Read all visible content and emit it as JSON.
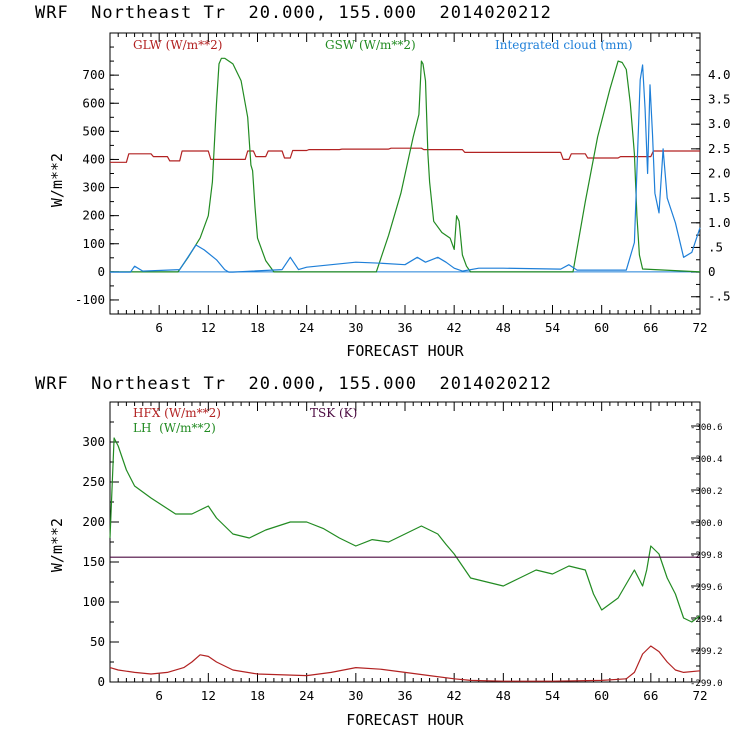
{
  "chart_data": [
    {
      "type": "line",
      "title": "WRF  Northeast Tr  20.000, 155.000  2014020212",
      "xlabel": "FORECAST HOUR",
      "ylabel": "W/m**2",
      "xlim": [
        0,
        72
      ],
      "ylim": [
        -150,
        850
      ],
      "y2lim": [
        -0.85,
        4.85
      ],
      "x_ticks": [
        6,
        12,
        18,
        24,
        30,
        36,
        42,
        48,
        54,
        60,
        66,
        72
      ],
      "y_ticks": [
        -100,
        0,
        100,
        200,
        300,
        400,
        500,
        600,
        700
      ],
      "y2_ticks": [
        -0.5,
        0,
        0.5,
        1.0,
        1.5,
        2.0,
        2.5,
        3.0,
        3.5,
        4.0
      ],
      "y2_tick_labels": [
        "-.5",
        "0",
        ".5",
        "1.0",
        "1.5",
        "2.0",
        "2.5",
        "3.0",
        "3.5",
        "4.0"
      ],
      "legend": [
        "GLW (W/m**2)",
        "GSW (W/m**2)",
        "Integrated cloud (mm)"
      ],
      "series": [
        {
          "name": "GLW (W/m**2)",
          "color": "#b22222",
          "axis": "left",
          "step": true,
          "x": [
            0,
            2,
            2.3,
            5,
            5.3,
            7,
            7.3,
            8.5,
            8.8,
            12,
            12.3,
            16.5,
            16.8,
            17.5,
            17.8,
            19,
            19.3,
            21,
            21.3,
            22,
            22.3,
            24,
            24.3,
            28,
            28.3,
            34,
            34.3,
            38,
            38.3,
            43,
            43.3,
            55,
            55.3,
            56,
            56.3,
            58,
            58.3,
            62,
            62.3,
            66,
            66.3,
            72
          ],
          "y": [
            390,
            390,
            420,
            420,
            410,
            410,
            395,
            395,
            430,
            430,
            400,
            400,
            430,
            430,
            410,
            410,
            430,
            430,
            405,
            405,
            432,
            432,
            435,
            435,
            437,
            437,
            440,
            440,
            435,
            435,
            425,
            425,
            400,
            400,
            420,
            420,
            405,
            405,
            410,
            410,
            430,
            430
          ]
        },
        {
          "name": "GSW (W/m**2)",
          "color": "#228b22",
          "axis": "left",
          "x": [
            0,
            8.3,
            9.5,
            11,
            12,
            12.5,
            13,
            13.3,
            13.6,
            14,
            15,
            16,
            16.8,
            17.2,
            17.4,
            17.7,
            18,
            19,
            20,
            32.5,
            34,
            35.5,
            37,
            37.7,
            38,
            38.2,
            38.5,
            38.8,
            39,
            39.5,
            40.5,
            41.5,
            42,
            42.3,
            42.6,
            43,
            43.5,
            44,
            56.5,
            58,
            59.5,
            61,
            62,
            62.5,
            63,
            63.5,
            64,
            64.3,
            64.6,
            65,
            72
          ],
          "y": [
            0,
            0,
            50,
            120,
            200,
            320,
            600,
            740,
            760,
            760,
            740,
            680,
            550,
            380,
            360,
            230,
            120,
            40,
            0,
            0,
            130,
            280,
            480,
            560,
            750,
            740,
            680,
            420,
            320,
            180,
            140,
            120,
            80,
            200,
            180,
            60,
            20,
            0,
            0,
            250,
            480,
            650,
            750,
            745,
            720,
            600,
            420,
            200,
            60,
            10,
            0
          ]
        },
        {
          "name": "Integrated cloud (mm)",
          "color": "#1e7fd8",
          "axis": "right",
          "x": [
            0,
            2.5,
            3,
            4,
            8.5,
            9.5,
            10.5,
            11.5,
            13,
            14,
            14.5,
            15,
            21,
            22,
            23,
            24,
            30,
            33,
            36,
            37.5,
            38.5,
            40,
            41,
            42,
            43,
            45,
            48,
            55,
            56,
            57,
            63,
            64,
            64.4,
            64.7,
            65,
            65.3,
            65.6,
            65.9,
            66.2,
            66.5,
            67,
            67.5,
            68,
            69,
            70,
            71,
            72
          ],
          "y": [
            0,
            0,
            0.12,
            0.02,
            0.05,
            0.3,
            0.55,
            0.45,
            0.25,
            0.05,
            0,
            0,
            0.05,
            0.3,
            0.05,
            0.1,
            0.2,
            0.18,
            0.15,
            0.3,
            0.2,
            0.3,
            0.2,
            0.08,
            0.02,
            0.08,
            0.08,
            0.06,
            0.15,
            0.04,
            0.04,
            0.6,
            2.5,
            3.9,
            4.2,
            3.3,
            2.0,
            3.8,
            2.8,
            1.6,
            1.2,
            2.5,
            1.5,
            1.0,
            0.3,
            0.4,
            0.9
          ]
        }
      ]
    },
    {
      "type": "line",
      "title": "WRF  Northeast Tr  20.000, 155.000  2014020212",
      "xlabel": "FORECAST HOUR",
      "ylabel": "W/m**2",
      "xlim": [
        0,
        72
      ],
      "ylim": [
        0,
        350
      ],
      "y2lim": [
        299.0,
        300.75
      ],
      "x_ticks": [
        6,
        12,
        18,
        24,
        30,
        36,
        42,
        48,
        54,
        60,
        66,
        72
      ],
      "y_ticks": [
        0,
        50,
        100,
        150,
        200,
        250,
        300
      ],
      "y2_ticks": [
        299.0,
        299.2,
        299.4,
        299.6,
        299.8,
        300.0,
        300.2,
        300.4,
        300.6
      ],
      "y2_tick_labels": [
        "299.0",
        "299.2",
        "299.4",
        "299.6",
        "299.8",
        "300.0",
        "300.2",
        "300.4",
        "300.6"
      ],
      "legend": [
        "HFX (W/m**2)",
        "LH  (W/m**2)",
        "TSK (K)"
      ],
      "series": [
        {
          "name": "HFX (W/m**2)",
          "color": "#b22222",
          "axis": "left",
          "x": [
            0,
            1,
            3,
            5,
            7,
            9,
            10,
            11,
            12,
            13,
            15,
            18,
            24,
            27,
            30,
            33,
            36,
            39,
            42,
            44,
            48,
            54,
            60,
            63,
            64,
            65,
            66,
            67,
            68,
            69,
            70,
            72
          ],
          "y": [
            18,
            15,
            12,
            10,
            12,
            18,
            25,
            34,
            32,
            25,
            15,
            10,
            8,
            12,
            18,
            16,
            12,
            8,
            4,
            2,
            1,
            1,
            2,
            4,
            12,
            35,
            45,
            38,
            25,
            15,
            12,
            14
          ]
        },
        {
          "name": "LH  (W/m**2)",
          "color": "#228b22",
          "axis": "left",
          "x": [
            0,
            0.5,
            1,
            2,
            3,
            5,
            8,
            10,
            11,
            12,
            13,
            15,
            17,
            19,
            22,
            24,
            26,
            28,
            30,
            32,
            34,
            36,
            38,
            40,
            41,
            42,
            43,
            44,
            46,
            48,
            50,
            52,
            54,
            56,
            58,
            59,
            60,
            62,
            64,
            64.5,
            65,
            65.5,
            66,
            67,
            68,
            69,
            70,
            71,
            72
          ],
          "y": [
            180,
            305,
            295,
            265,
            245,
            230,
            210,
            210,
            215,
            220,
            205,
            185,
            180,
            190,
            200,
            200,
            192,
            180,
            170,
            178,
            175,
            185,
            195,
            185,
            172,
            160,
            145,
            130,
            125,
            120,
            130,
            140,
            135,
            145,
            140,
            110,
            90,
            105,
            140,
            130,
            120,
            140,
            170,
            160,
            130,
            110,
            80,
            75,
            83
          ]
        },
        {
          "name": "TSK (K)",
          "color": "#4b0a40",
          "axis": "right",
          "x": [
            0,
            72
          ],
          "y": [
            299.78,
            299.78
          ]
        }
      ]
    }
  ]
}
